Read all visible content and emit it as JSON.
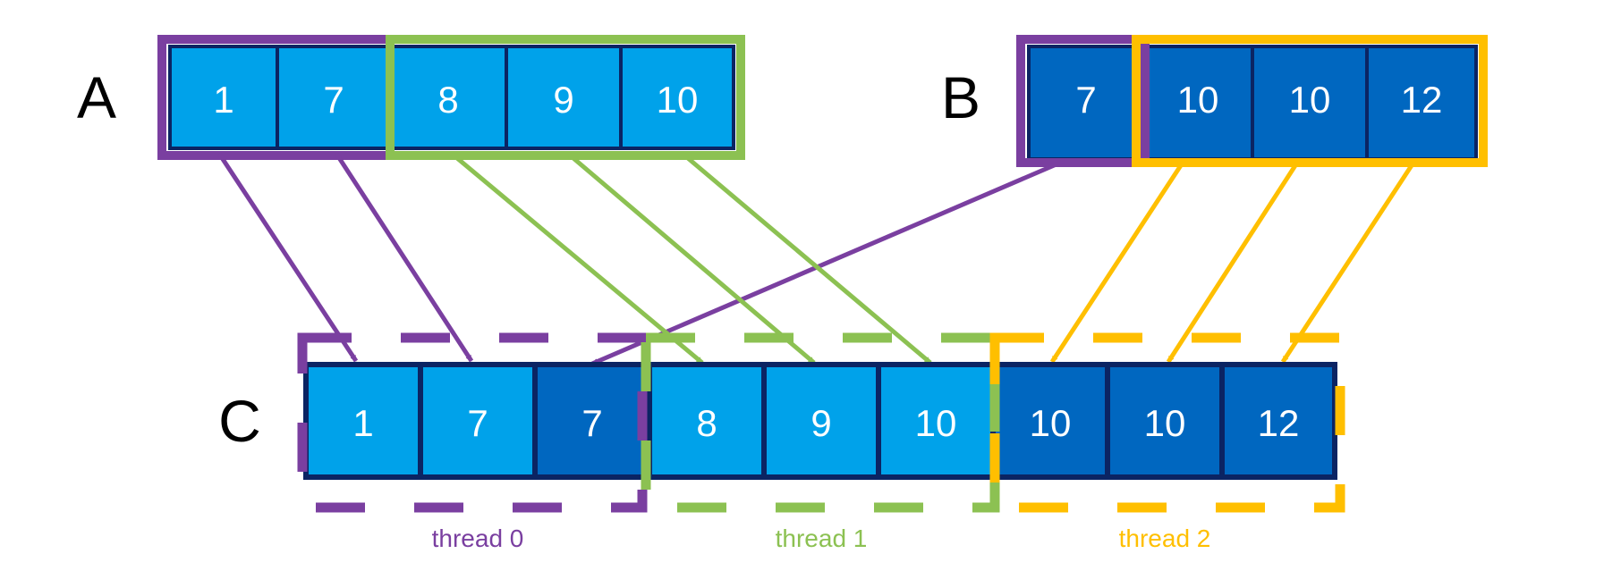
{
  "arrays": {
    "A": {
      "label": "A",
      "values": [
        "1",
        "7",
        "8",
        "9",
        "10"
      ]
    },
    "B": {
      "label": "B",
      "values": [
        "7",
        "10",
        "10",
        "12"
      ]
    },
    "C": {
      "label": "C",
      "values": [
        "1",
        "7",
        "7",
        "8",
        "9",
        "10",
        "10",
        "10",
        "12"
      ]
    }
  },
  "threads": [
    {
      "label": "thread 0"
    },
    {
      "label": "thread 1"
    },
    {
      "label": "thread 2"
    }
  ],
  "colors": {
    "light_cell": "#00a2ea",
    "dark_cell": "#0067c0",
    "cell_border": "#0b2463",
    "thread0": "#7a3fa0",
    "thread1": "#8cc152",
    "thread2": "#ffbf00",
    "label_text": "#000000",
    "cell_text": "#ffffff"
  }
}
